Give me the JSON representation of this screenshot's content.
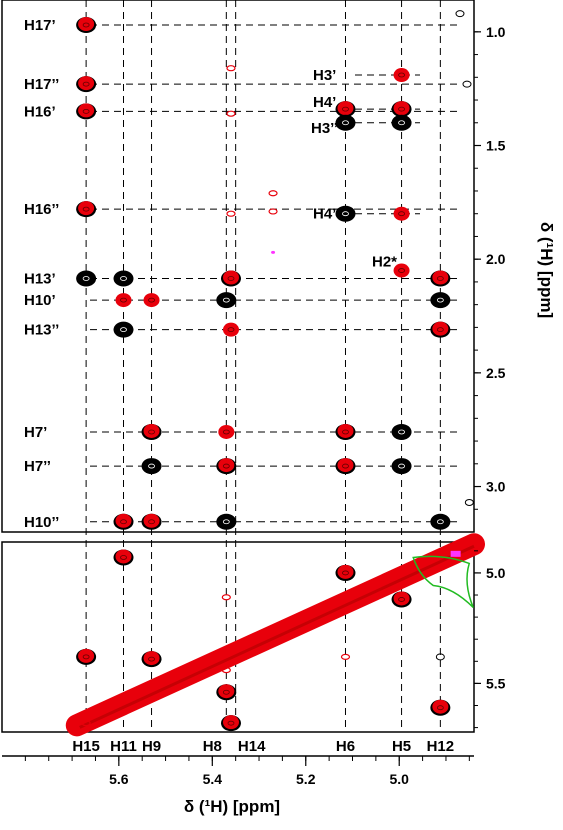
{
  "chart_data": [
    {
      "type": "scatter",
      "subtype": "2D NMR contour spectrum (overlay of two spectra, top region)",
      "title": "",
      "xlabel": "δ (¹H) [ppm]",
      "ylabel": "δ (¹H) [ppm]",
      "x_axis_reversed": true,
      "y_axis_reversed": true,
      "xlim": [
        5.85,
        4.84
      ],
      "ylim": [
        0.86,
        3.2
      ],
      "x_ticks": [
        "5.6",
        "5.4",
        "5.2",
        "5.0"
      ],
      "y_ticks": [
        "1.0",
        "1.5",
        "2.0",
        "2.5",
        "3.0"
      ],
      "colors": {
        "spectrum_a": "#000000",
        "spectrum_b": "#e8000b",
        "accent": "#ff33ff"
      },
      "column_labels": [
        {
          "label": "H15",
          "x": 5.67
        },
        {
          "label": "H11",
          "x": 5.59
        },
        {
          "label": "H9",
          "x": 5.53
        },
        {
          "label": "H8",
          "x": 5.37
        },
        {
          "label": "H14",
          "x": 5.35
        },
        {
          "label": "H6",
          "x": 5.115
        },
        {
          "label": "H5",
          "x": 4.995
        },
        {
          "label": "H12",
          "x": 4.912
        }
      ],
      "row_labels_left": [
        {
          "label": "H17’",
          "y": 0.97
        },
        {
          "label": "H17’’",
          "y": 1.23
        },
        {
          "label": "H16’",
          "y": 1.35
        },
        {
          "label": "H16’’",
          "y": 1.78
        },
        {
          "label": "H13’",
          "y": 2.085
        },
        {
          "label": "H10’",
          "y": 2.18
        },
        {
          "label": "H13’’",
          "y": 2.31
        },
        {
          "label": "H7’",
          "y": 2.76
        },
        {
          "label": "H7’’",
          "y": 2.91
        },
        {
          "label": "H10’’",
          "y": 3.155
        }
      ],
      "row_labels_right": [
        {
          "label": "H3’",
          "y": 1.19
        },
        {
          "label": "H4’",
          "y": 1.34
        },
        {
          "label": "H3’’",
          "y": 1.4
        },
        {
          "label": "H4’’",
          "y": 1.8
        },
        {
          "label": "H2*",
          "y": 2.05
        }
      ],
      "peaks": [
        {
          "x": 5.67,
          "y": 0.97,
          "s": "both"
        },
        {
          "x": 5.67,
          "y": 1.23,
          "s": "both"
        },
        {
          "x": 5.67,
          "y": 1.35,
          "s": "both"
        },
        {
          "x": 5.67,
          "y": 1.78,
          "s": "both"
        },
        {
          "x": 5.67,
          "y": 2.085,
          "s": "black"
        },
        {
          "x": 5.59,
          "y": 2.085,
          "s": "black"
        },
        {
          "x": 5.36,
          "y": 2.085,
          "s": "both"
        },
        {
          "x": 4.912,
          "y": 2.085,
          "s": "both"
        },
        {
          "x": 5.59,
          "y": 2.18,
          "s": "red"
        },
        {
          "x": 5.53,
          "y": 2.18,
          "s": "red"
        },
        {
          "x": 5.37,
          "y": 2.18,
          "s": "black"
        },
        {
          "x": 4.912,
          "y": 2.18,
          "s": "black"
        },
        {
          "x": 5.59,
          "y": 2.31,
          "s": "black"
        },
        {
          "x": 5.36,
          "y": 2.31,
          "s": "red"
        },
        {
          "x": 4.912,
          "y": 2.31,
          "s": "both"
        },
        {
          "x": 5.53,
          "y": 2.76,
          "s": "both"
        },
        {
          "x": 5.37,
          "y": 2.76,
          "s": "red"
        },
        {
          "x": 5.115,
          "y": 2.76,
          "s": "both"
        },
        {
          "x": 4.995,
          "y": 2.76,
          "s": "black"
        },
        {
          "x": 5.53,
          "y": 2.91,
          "s": "black"
        },
        {
          "x": 5.37,
          "y": 2.91,
          "s": "both"
        },
        {
          "x": 5.115,
          "y": 2.91,
          "s": "both"
        },
        {
          "x": 4.995,
          "y": 2.91,
          "s": "black"
        },
        {
          "x": 5.59,
          "y": 3.155,
          "s": "both"
        },
        {
          "x": 5.53,
          "y": 3.155,
          "s": "both"
        },
        {
          "x": 5.37,
          "y": 3.155,
          "s": "black"
        },
        {
          "x": 4.912,
          "y": 3.155,
          "s": "black"
        },
        {
          "x": 4.995,
          "y": 1.19,
          "s": "red"
        },
        {
          "x": 5.115,
          "y": 1.34,
          "s": "both"
        },
        {
          "x": 4.995,
          "y": 1.34,
          "s": "both"
        },
        {
          "x": 5.115,
          "y": 1.4,
          "s": "black"
        },
        {
          "x": 4.995,
          "y": 1.4,
          "s": "black"
        },
        {
          "x": 5.115,
          "y": 1.8,
          "s": "black"
        },
        {
          "x": 4.995,
          "y": 1.8,
          "s": "red"
        },
        {
          "x": 4.995,
          "y": 2.05,
          "s": "red"
        },
        {
          "x": 5.36,
          "y": 1.16,
          "s": "red_small"
        },
        {
          "x": 5.36,
          "y": 1.36,
          "s": "red_small"
        },
        {
          "x": 5.36,
          "y": 1.8,
          "s": "red_small"
        },
        {
          "x": 5.27,
          "y": 1.71,
          "s": "red_small"
        },
        {
          "x": 5.27,
          "y": 1.79,
          "s": "red_small"
        },
        {
          "x": 5.27,
          "y": 1.97,
          "s": "magenta_small"
        },
        {
          "x": 4.855,
          "y": 1.23,
          "s": "black_small"
        },
        {
          "x": 4.85,
          "y": 3.07,
          "s": "black_small"
        },
        {
          "x": 4.87,
          "y": 0.92,
          "s": "black_small"
        }
      ]
    },
    {
      "type": "scatter",
      "subtype": "2D NMR contour spectrum (overlay, diagonal region)",
      "xlabel": "δ (¹H) [ppm]",
      "ylabel": "",
      "x_axis_reversed": true,
      "y_axis_reversed": true,
      "xlim": [
        5.85,
        4.84
      ],
      "ylim": [
        4.86,
        5.72
      ],
      "y_ticks": [
        "5.0",
        "5.5"
      ],
      "diagonal": {
        "from": [
          5.69,
          5.69
        ],
        "to": [
          4.84,
          4.87
        ]
      },
      "peaks": [
        {
          "x": 5.59,
          "y": 4.93,
          "s": "both"
        },
        {
          "x": 5.115,
          "y": 5.0,
          "s": "both"
        },
        {
          "x": 4.995,
          "y": 5.12,
          "s": "both"
        },
        {
          "x": 5.37,
          "y": 5.11,
          "s": "red_small"
        },
        {
          "x": 5.67,
          "y": 5.38,
          "s": "both"
        },
        {
          "x": 5.53,
          "y": 5.39,
          "s": "both"
        },
        {
          "x": 5.115,
          "y": 5.38,
          "s": "red_small"
        },
        {
          "x": 4.912,
          "y": 5.38,
          "s": "black_small"
        },
        {
          "x": 5.37,
          "y": 5.54,
          "s": "both"
        },
        {
          "x": 5.37,
          "y": 5.44,
          "s": "red_small"
        },
        {
          "x": 4.912,
          "y": 5.61,
          "s": "both"
        },
        {
          "x": 5.36,
          "y": 5.68,
          "s": "both"
        },
        {
          "x": 5.67,
          "y": 5.68,
          "s": "red_small"
        }
      ]
    }
  ]
}
